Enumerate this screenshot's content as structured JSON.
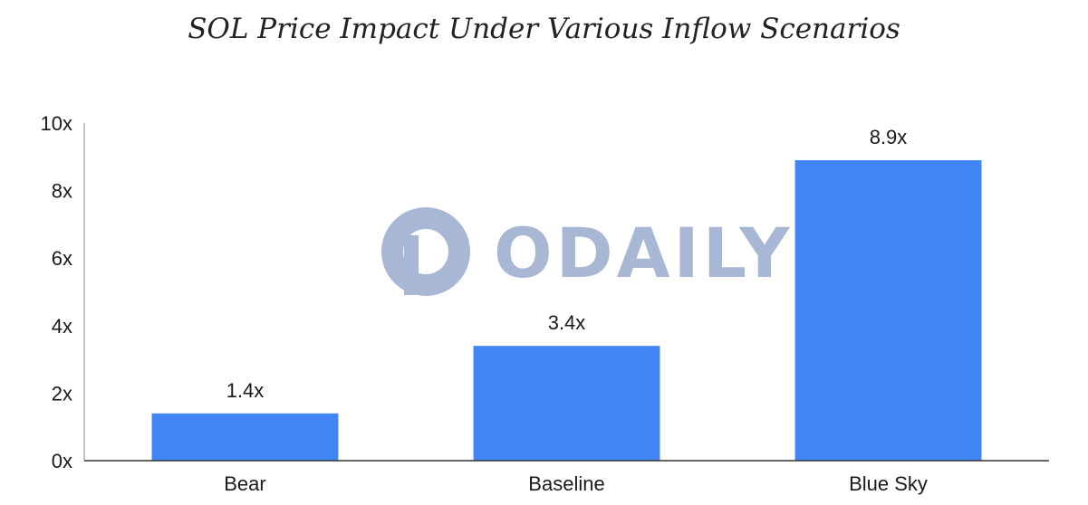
{
  "chart_data": {
    "type": "bar",
    "title": "SOL Price Impact Under Various Inflow Scenarios",
    "categories": [
      "Bear",
      "Baseline",
      "Blue Sky"
    ],
    "values": [
      1.4,
      3.4,
      8.9
    ],
    "data_labels": [
      "1.4x",
      "3.4x",
      "8.9x"
    ],
    "ylim": [
      0,
      10
    ],
    "yticks": [
      0,
      2,
      4,
      6,
      8,
      10
    ],
    "ytick_labels": [
      "0x",
      "2x",
      "4x",
      "6x",
      "8x",
      "10x"
    ],
    "xlabel": "",
    "ylabel": "",
    "grid": false,
    "legend": false,
    "colors": {
      "bar": "#4285f4",
      "axis": "#333333"
    }
  },
  "watermark": {
    "text": "ODAILY",
    "color": "#a3b4d2"
  }
}
